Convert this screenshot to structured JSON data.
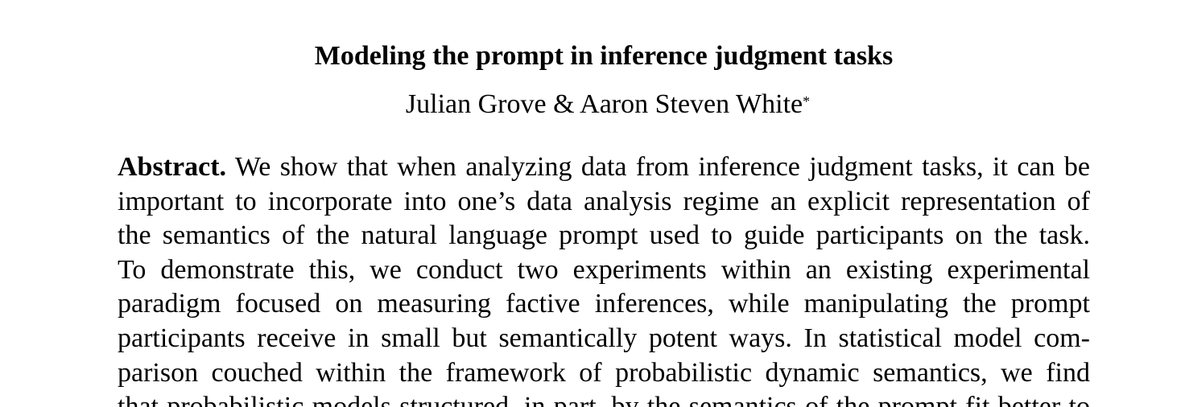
{
  "paper": {
    "title": "Modeling the prompt in inference judgment tasks",
    "authors": "Julian Grove & Aaron Steven White",
    "author_footnote_mark": "*",
    "abstract_label": "Abstract.",
    "abstract_lines": [
      "We show that when analyzing data from inference judgment tasks, it can be",
      "important to incorporate into one’s data analysis regime an explicit representation of",
      "the semantics of the natural language prompt used to guide participants on the task.",
      "To demonstrate this, we conduct two experiments within an existing experimental",
      "paradigm focused on measuring factive inferences, while manipulating the prompt",
      "participants receive in small but semantically potent ways. In statistical model com-",
      "parison couched within the framework of probabilistic dynamic semantics, we find",
      "that probabilistic models structured, in part, by the semantics of the prompt fit better to"
    ]
  }
}
